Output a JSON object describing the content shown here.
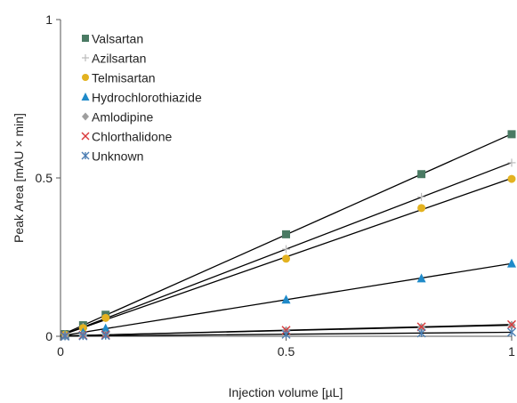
{
  "chart_data": {
    "type": "scatter",
    "xlabel": "Injection volume [µL]",
    "ylabel": "Peak Area [mAU × min]",
    "xlim": [
      0,
      1
    ],
    "ylim": [
      0,
      1
    ],
    "x_ticks": [
      "0",
      "0.5",
      "1"
    ],
    "y_ticks": [
      "0",
      "0.5",
      "1"
    ],
    "grid": false,
    "legend_position": "top-left",
    "trendlines": "linear",
    "x": [
      0.01,
      0.05,
      0.1,
      0.5,
      0.8,
      1.0
    ],
    "series": [
      {
        "name": "Valsartan",
        "marker": "square",
        "color": "#4a7a63",
        "values": [
          0.007,
          0.035,
          0.068,
          0.322,
          0.512,
          0.638
        ]
      },
      {
        "name": "Azilsartan",
        "marker": "plus",
        "color": "#bbbbbb",
        "values": [
          0.006,
          0.029,
          0.058,
          0.275,
          0.44,
          0.548
        ]
      },
      {
        "name": "Telmisartan",
        "marker": "circle",
        "color": "#e3b220",
        "values": [
          0.005,
          0.026,
          0.058,
          0.245,
          0.405,
          0.497
        ]
      },
      {
        "name": "Hydrochlorothiazide",
        "marker": "triangle",
        "color": "#1f8ac9",
        "values": [
          0.003,
          0.012,
          0.025,
          0.116,
          0.183,
          0.23
        ]
      },
      {
        "name": "Amlodipine",
        "marker": "diamond",
        "color": "#9e9e9e",
        "values": [
          0.001,
          0.003,
          0.005,
          0.018,
          0.028,
          0.035
        ]
      },
      {
        "name": "Chlorthalidone",
        "marker": "x",
        "color": "#d9383a",
        "values": [
          0.001,
          0.003,
          0.005,
          0.019,
          0.03,
          0.037
        ]
      },
      {
        "name": "Unknown",
        "marker": "asterisk",
        "color": "#4d7fb3",
        "values": [
          0.0,
          0.001,
          0.002,
          0.006,
          0.01,
          0.013
        ]
      }
    ]
  }
}
